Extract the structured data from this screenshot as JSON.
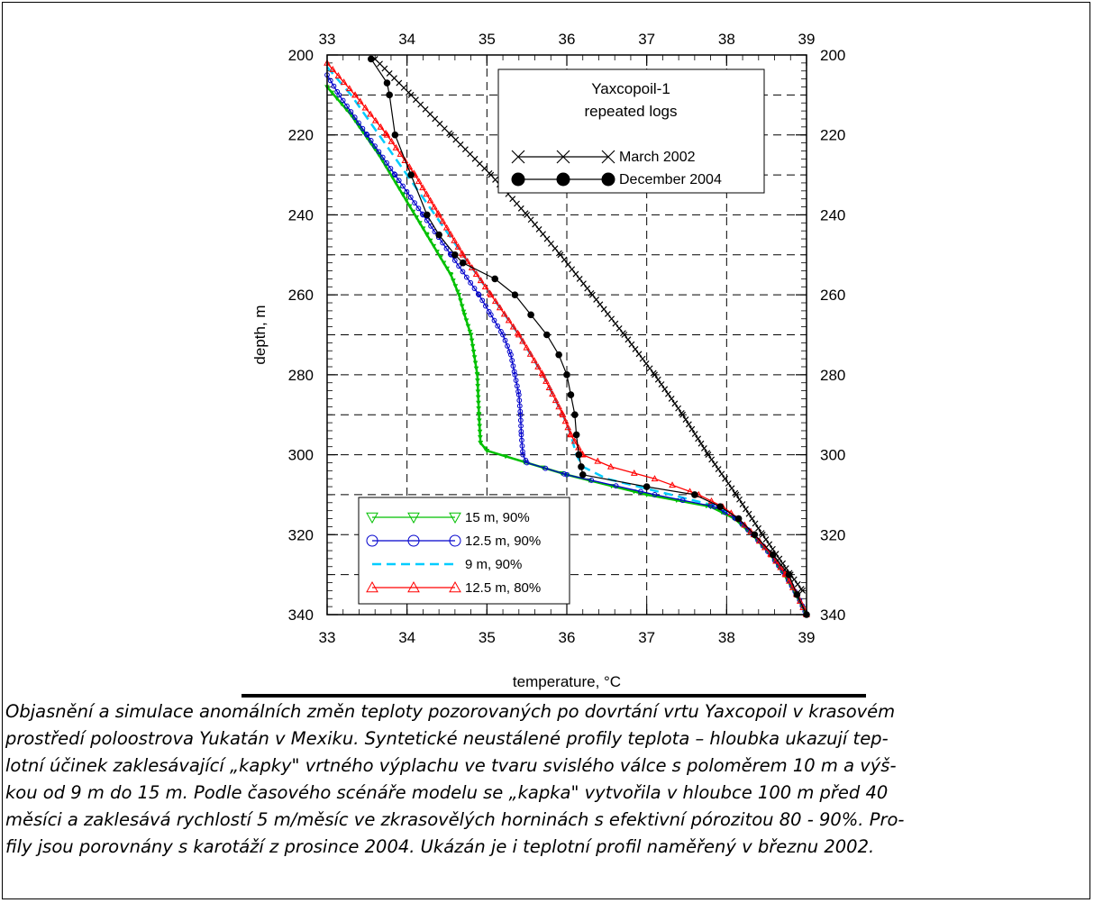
{
  "chart_data": {
    "type": "line",
    "xlabel": "temperature, °C",
    "ylabel": "depth, m",
    "xlim": [
      33,
      39
    ],
    "ylim": [
      200,
      340
    ],
    "y_inverted": true,
    "xticks": [
      33,
      34,
      35,
      36,
      37,
      38,
      39
    ],
    "yticks": [
      200,
      220,
      240,
      260,
      280,
      300,
      320,
      340
    ],
    "grid": "dashed",
    "legend_top": {
      "title": [
        "Yaxcopoil-1",
        "repeated logs"
      ],
      "placement": "top-right"
    },
    "legend_bottom_placement": "bottom-left",
    "series": [
      {
        "name": "March 2002",
        "color": "#000000",
        "marker": "x",
        "depth": [
          201,
          210,
          220,
          230,
          240,
          250,
          260,
          270,
          280,
          290,
          300,
          310,
          320,
          330,
          334
        ],
        "temperature": [
          33.6,
          34.05,
          34.55,
          35.05,
          35.5,
          35.92,
          36.32,
          36.72,
          37.1,
          37.45,
          37.77,
          38.12,
          38.45,
          38.8,
          38.95
        ]
      },
      {
        "name": "December 2004",
        "color": "#000000",
        "marker": "circle",
        "depth": [
          201,
          207,
          210,
          220,
          230,
          240,
          245,
          250,
          252,
          256,
          260,
          265,
          270,
          275,
          280,
          285,
          290,
          295,
          300,
          303,
          305,
          308,
          310,
          313,
          316,
          320,
          325,
          330,
          335,
          340
        ],
        "temperature": [
          33.55,
          33.75,
          33.78,
          33.85,
          34.05,
          34.25,
          34.4,
          34.6,
          34.7,
          35.1,
          35.35,
          35.55,
          35.75,
          35.9,
          36.0,
          36.05,
          36.1,
          36.12,
          36.15,
          36.18,
          36.2,
          37.0,
          37.6,
          37.92,
          38.15,
          38.35,
          38.58,
          38.78,
          38.88,
          39.0
        ]
      },
      {
        "name": "15 m, 90%",
        "color": "#00c000",
        "marker": "triangle-down",
        "depth": [
          208,
          215,
          225,
          235,
          245,
          255,
          260,
          265,
          270,
          280,
          290,
          297,
          299,
          305,
          310,
          313,
          316,
          320,
          325,
          330,
          335,
          340
        ],
        "temperature": [
          33.0,
          33.3,
          33.65,
          33.95,
          34.25,
          34.55,
          34.65,
          34.72,
          34.8,
          34.88,
          34.9,
          34.92,
          35.0,
          36.0,
          37.0,
          37.8,
          38.1,
          38.32,
          38.55,
          38.72,
          38.87,
          39.0
        ]
      },
      {
        "name": "12.5 m, 90%",
        "color": "#0000cc",
        "marker": "circle",
        "depth": [
          205,
          210,
          220,
          230,
          240,
          250,
          260,
          265,
          270,
          275,
          280,
          285,
          290,
          295,
          300,
          302,
          305,
          310,
          313,
          316,
          320,
          325,
          330,
          335,
          340
        ],
        "temperature": [
          33.0,
          33.15,
          33.5,
          33.85,
          34.2,
          34.55,
          34.9,
          35.05,
          35.2,
          35.3,
          35.35,
          35.4,
          35.42,
          35.43,
          35.45,
          35.5,
          36.0,
          37.1,
          37.85,
          38.12,
          38.33,
          38.55,
          38.73,
          38.88,
          39.0
        ]
      },
      {
        "name": "9 m, 90%",
        "color": "#00ccff",
        "marker": "dash",
        "depth": [
          203,
          210,
          220,
          230,
          240,
          250,
          260,
          270,
          280,
          290,
          295,
          300,
          303,
          306,
          310,
          313,
          316,
          320,
          325,
          330,
          335,
          340
        ],
        "temperature": [
          33.0,
          33.3,
          33.65,
          34.0,
          34.35,
          34.7,
          35.05,
          35.4,
          35.7,
          35.95,
          36.05,
          36.12,
          36.2,
          36.5,
          37.3,
          37.9,
          38.15,
          38.34,
          38.56,
          38.74,
          38.88,
          39.0
        ]
      },
      {
        "name": "12.5 m, 80%",
        "color": "#ff0000",
        "marker": "triangle-up",
        "depth": [
          202,
          210,
          220,
          230,
          240,
          250,
          260,
          270,
          280,
          290,
          295,
          300,
          303,
          306,
          310,
          313,
          316,
          320,
          325,
          330,
          335,
          340
        ],
        "temperature": [
          33.0,
          33.35,
          33.75,
          34.1,
          34.4,
          34.7,
          35.05,
          35.4,
          35.7,
          35.95,
          36.05,
          36.2,
          36.55,
          37.1,
          37.65,
          37.95,
          38.15,
          38.34,
          38.56,
          38.74,
          38.88,
          39.0
        ]
      }
    ]
  },
  "caption": {
    "lines": [
      "Objasnění a simulace anomálních změn teploty pozorovaných po dovrtání vrtu Yaxcopoil v krasovém",
      "prostředí poloostrova Yukatán v Mexiku. Syntetické neustálené profily teplota – hloubka ukazují tep-",
      "lotní účinek zaklesávající „kapky\" vrtného výplachu ve tvaru svislého válce s poloměrem 10 m a výš-",
      "kou od 9 m do 15 m. Podle časového scénáře modelu se „kapka\" vytvořila v hloubce 100 m před 40",
      "měsíci a zaklesává rychlostí 5 m/měsíc ve zkrasovělých horninách s efektivní pórozitou 80 - 90%. Pro-",
      "fily jsou porovnány s karotáží z prosince 2004. Ukázán je i teplotní profil naměřený v březnu 2002."
    ]
  }
}
